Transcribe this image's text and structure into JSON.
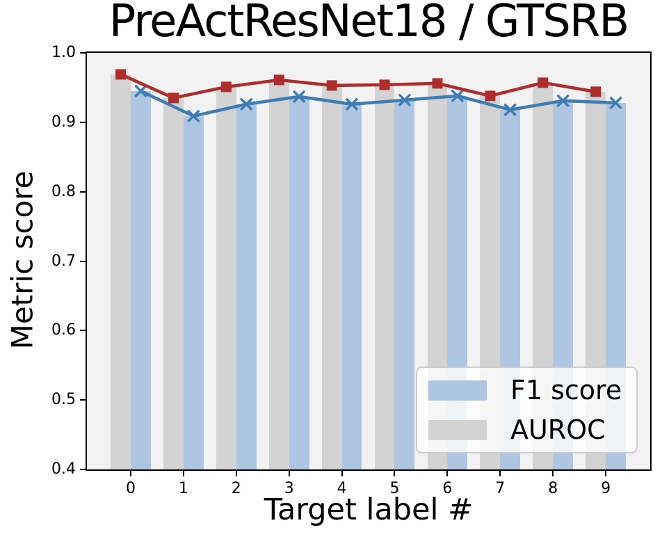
{
  "chart_data": {
    "type": "bar",
    "title": "PreActResNet18 / GTSRB",
    "xlabel": "Target label #",
    "ylabel": "Metric score",
    "categories": [
      "0",
      "1",
      "2",
      "3",
      "4",
      "5",
      "6",
      "7",
      "8",
      "9"
    ],
    "series": [
      {
        "name": "AUROC",
        "render": "bar+line",
        "bar_color": "#d3d3d3",
        "line_color": "#ae2c2c",
        "marker": "square",
        "offset": -0.19,
        "values": [
          0.969,
          0.935,
          0.951,
          0.961,
          0.953,
          0.954,
          0.956,
          0.938,
          0.957,
          0.944
        ]
      },
      {
        "name": "F1 score",
        "render": "bar+line",
        "bar_color": "#aec6e2",
        "line_color": "#3e7cb1",
        "marker": "x",
        "offset": 0.19,
        "values": [
          0.945,
          0.909,
          0.926,
          0.937,
          0.926,
          0.932,
          0.938,
          0.918,
          0.931,
          0.928
        ]
      }
    ],
    "ylim": [
      0.4,
      1.0
    ],
    "yticks": [
      1.0,
      0.9,
      0.8,
      0.7,
      0.6,
      0.5,
      0.4
    ],
    "ytick_labels": [
      "1.0",
      "0.9",
      "0.8",
      "0.7",
      "0.6",
      "0.5",
      "0.4"
    ],
    "xlim": [
      -0.83,
      9.842
    ],
    "bar_width": 0.38,
    "grid": false,
    "plot_bg": "#f2f2f2",
    "legend": {
      "position": "lower right",
      "items": [
        "F1 score",
        "AUROC"
      ],
      "swatch_colors": [
        "#aec6e2",
        "#d3d3d3"
      ]
    }
  }
}
